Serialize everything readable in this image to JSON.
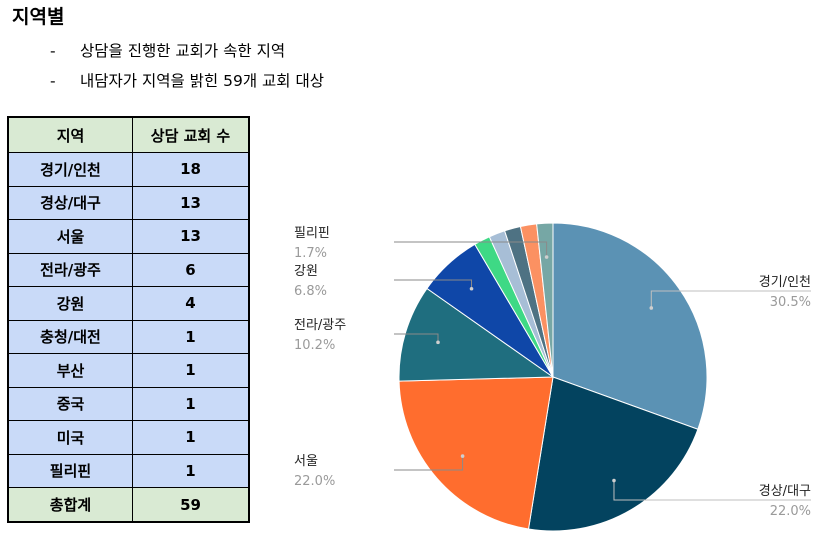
{
  "heading": "지역별",
  "bullets": [
    "상담을 진행한 교회가 속한 지역",
    "내담자가 지역을 밝힌 59개 교회 대상"
  ],
  "bullet_marker": "-",
  "table": {
    "headers": [
      "지역",
      "상담 교회 수"
    ],
    "rows": [
      [
        "경기/인천",
        "18"
      ],
      [
        "경상/대구",
        "13"
      ],
      [
        "서울",
        "13"
      ],
      [
        "전라/광주",
        "6"
      ],
      [
        "강원",
        "4"
      ],
      [
        "충청/대전",
        "1"
      ],
      [
        "부산",
        "1"
      ],
      [
        "중국",
        "1"
      ],
      [
        "미국",
        "1"
      ],
      [
        "필리핀",
        "1"
      ]
    ],
    "total": [
      "총합계",
      "59"
    ]
  },
  "chart_data": {
    "type": "pie",
    "categories": [
      "경기/인천",
      "경상/대구",
      "서울",
      "전라/광주",
      "강원",
      "충청/대전",
      "부산",
      "중국",
      "미국",
      "필리핀"
    ],
    "values": [
      18,
      13,
      13,
      6,
      4,
      1,
      1,
      1,
      1,
      1
    ],
    "colors": [
      "#5b92b4",
      "#03435f",
      "#ff6d2e",
      "#1f6e7f",
      "#0f47a8",
      "#3ed985",
      "#a7bed6",
      "#4e7283",
      "#fb9162",
      "#76a7a5"
    ],
    "slice_labels": [
      {
        "name": "경기/인천",
        "pct": "30.5%"
      },
      {
        "name": "경상/대구",
        "pct": "22.0%"
      },
      {
        "name": "서울",
        "pct": "22.0%"
      },
      {
        "name": "전라/광주",
        "pct": "10.2%"
      },
      {
        "name": "강원",
        "pct": "6.8%"
      },
      {
        "name": "필리핀",
        "pct": "1.7%"
      }
    ]
  }
}
